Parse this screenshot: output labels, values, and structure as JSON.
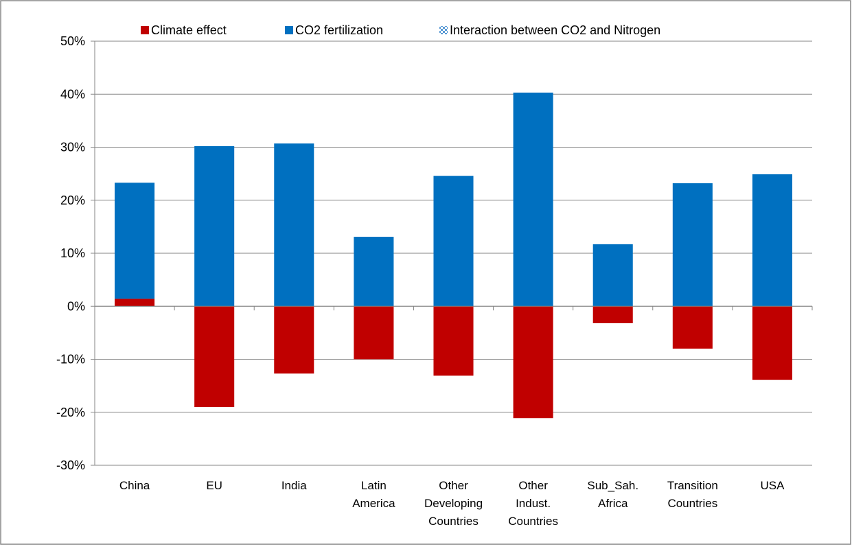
{
  "chart_data": {
    "type": "bar",
    "stacked": true,
    "categories": [
      "China",
      "EU",
      "India",
      "Latin America",
      "Other Developing Countries",
      "Other Indust. Countries",
      "Sub_Sah. Africa",
      "Transition Countries",
      "USA"
    ],
    "series": [
      {
        "name": "Climate effect",
        "color": "#c00000",
        "values": [
          1.4,
          -19.0,
          -12.7,
          -10.0,
          -13.1,
          -21.1,
          -3.2,
          -8.0,
          -13.9
        ]
      },
      {
        "name": "CO2 fertilization",
        "color": "#0070c0",
        "values": [
          21.9,
          30.2,
          30.7,
          13.1,
          24.6,
          40.3,
          11.7,
          23.2,
          24.9
        ]
      },
      {
        "name": "Interaction between CO2 and Nitrogen",
        "color": "#9dc3e6",
        "values": [
          0,
          0,
          0,
          0,
          0,
          0,
          0,
          0,
          0
        ]
      }
    ],
    "ylim": [
      -30,
      50
    ],
    "yticks": [
      {
        "value": -30,
        "label": "-30%"
      },
      {
        "value": -20,
        "label": "-20%"
      },
      {
        "value": -10,
        "label": "-10%"
      },
      {
        "value": 0,
        "label": "0%"
      },
      {
        "value": 10,
        "label": "10%"
      },
      {
        "value": 20,
        "label": "20%"
      },
      {
        "value": 30,
        "label": "30%"
      },
      {
        "value": 40,
        "label": "40%"
      },
      {
        "value": 50,
        "label": "50%"
      }
    ],
    "grid": true,
    "legend": "top"
  }
}
